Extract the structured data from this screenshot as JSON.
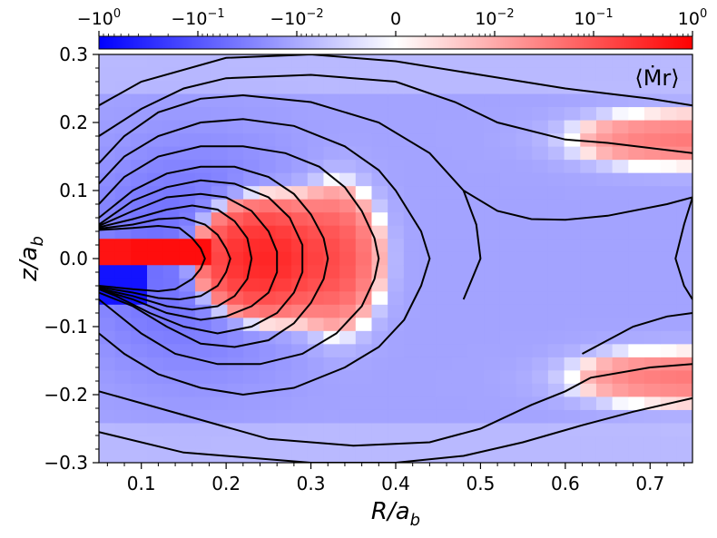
{
  "chart_data": {
    "type": "heatmap",
    "title": "",
    "annotation": "⟨Ṁr⟩",
    "xlabel": {
      "main": "R/a",
      "sub": "b"
    },
    "ylabel": {
      "main": "z/a",
      "sub": "b"
    },
    "xlim": [
      0.05,
      0.75
    ],
    "ylim": [
      -0.3,
      0.3
    ],
    "xticks": [
      0.1,
      0.2,
      0.3,
      0.4,
      0.5,
      0.6,
      0.7
    ],
    "xtick_labels": [
      "0.1",
      "0.2",
      "0.3",
      "0.4",
      "0.5",
      "0.6",
      "0.7"
    ],
    "yticks": [
      0.3,
      0.2,
      0.1,
      0.0,
      -0.1,
      -0.2,
      -0.3
    ],
    "ytick_labels": [
      "0.3",
      "0.2",
      "0.1",
      "0.0",
      "−0.1",
      "−0.2",
      "−0.3"
    ],
    "colorbar": {
      "scale": "symlog",
      "vmin": -1,
      "vmax": 1,
      "linthresh": 0.001,
      "colormap": [
        "#0000ff",
        "#ffffff",
        "#ff0000"
      ],
      "ticks": [
        {
          "value": -1,
          "base": "−10",
          "exp": "0"
        },
        {
          "value": -0.1,
          "base": "−10",
          "exp": "−1"
        },
        {
          "value": -0.01,
          "base": "−10",
          "exp": "−2"
        },
        {
          "value": 0,
          "base": "0",
          "exp": ""
        },
        {
          "value": 0.01,
          "base": "10",
          "exp": "−2"
        },
        {
          "value": 0.1,
          "base": "10",
          "exp": "−1"
        },
        {
          "value": 1,
          "base": "10",
          "exp": "0"
        }
      ]
    },
    "grid": false,
    "contour_color": "#000000",
    "contours": [
      {
        "x": [
          0.05,
          0.1,
          0.2,
          0.3,
          0.4,
          0.5,
          0.6,
          0.7,
          0.75
        ],
        "y": [
          0.225,
          0.26,
          0.295,
          0.3,
          0.29,
          0.27,
          0.25,
          0.235,
          0.225
        ]
      },
      {
        "x": [
          0.05,
          0.1,
          0.15,
          0.2,
          0.3,
          0.4,
          0.47,
          0.52,
          0.6,
          0.65,
          0.75
        ],
        "y": [
          0.18,
          0.22,
          0.25,
          0.265,
          0.27,
          0.26,
          0.23,
          0.2,
          0.175,
          0.17,
          0.155
        ]
      },
      {
        "x": [
          0.05,
          0.08,
          0.12,
          0.17,
          0.22,
          0.3,
          0.38,
          0.44,
          0.48,
          0.52,
          0.56,
          0.6,
          0.65,
          0.72,
          0.75
        ],
        "y": [
          0.14,
          0.18,
          0.215,
          0.235,
          0.24,
          0.23,
          0.2,
          0.155,
          0.1,
          0.07,
          0.058,
          0.057,
          0.063,
          0.08,
          0.09
        ]
      },
      {
        "x": [
          0.75,
          0.74,
          0.73,
          0.74,
          0.75
        ],
        "y": [
          0.09,
          0.05,
          0.0,
          -0.04,
          -0.06
        ]
      },
      {
        "x": [
          0.48,
          0.495,
          0.5,
          0.49,
          0.48
        ],
        "y": [
          0.1,
          0.05,
          0.0,
          -0.03,
          -0.06
        ]
      },
      {
        "x": [
          0.05,
          0.08,
          0.12,
          0.17,
          0.22,
          0.28,
          0.34,
          0.38,
          0.4,
          0.43,
          0.44,
          0.43,
          0.41,
          0.38,
          0.34,
          0.28,
          0.22,
          0.17,
          0.12,
          0.08,
          0.05
        ],
        "y": [
          0.11,
          0.15,
          0.18,
          0.2,
          0.205,
          0.195,
          0.165,
          0.13,
          0.1,
          0.04,
          0.0,
          -0.04,
          -0.09,
          -0.13,
          -0.16,
          -0.19,
          -0.2,
          -0.19,
          -0.17,
          -0.14,
          -0.11
        ]
      },
      {
        "x": [
          0.05,
          0.08,
          0.12,
          0.17,
          0.22,
          0.27,
          0.31,
          0.34,
          0.36,
          0.375,
          0.38,
          0.375,
          0.36,
          0.33,
          0.29,
          0.24,
          0.19,
          0.14,
          0.1,
          0.07,
          0.05
        ],
        "y": [
          0.08,
          0.12,
          0.15,
          0.165,
          0.165,
          0.155,
          0.135,
          0.105,
          0.07,
          0.03,
          0.0,
          -0.03,
          -0.07,
          -0.11,
          -0.14,
          -0.155,
          -0.155,
          -0.14,
          -0.11,
          -0.08,
          -0.06
        ]
      },
      {
        "x": [
          0.05,
          0.09,
          0.13,
          0.17,
          0.21,
          0.25,
          0.28,
          0.3,
          0.315,
          0.32,
          0.315,
          0.3,
          0.28,
          0.25,
          0.21,
          0.17,
          0.13,
          0.09,
          0.05
        ],
        "y": [
          0.06,
          0.1,
          0.125,
          0.135,
          0.135,
          0.12,
          0.095,
          0.065,
          0.03,
          0.0,
          -0.03,
          -0.065,
          -0.095,
          -0.12,
          -0.13,
          -0.125,
          -0.1,
          -0.07,
          -0.05
        ]
      },
      {
        "x": [
          0.05,
          0.09,
          0.13,
          0.17,
          0.21,
          0.25,
          0.275,
          0.29,
          0.29,
          0.28,
          0.26,
          0.23,
          0.19,
          0.15,
          0.11,
          0.07,
          0.05
        ],
        "y": [
          0.05,
          0.085,
          0.105,
          0.115,
          0.11,
          0.09,
          0.06,
          0.02,
          -0.02,
          -0.05,
          -0.08,
          -0.1,
          -0.11,
          -0.1,
          -0.08,
          -0.055,
          -0.045
        ]
      },
      {
        "x": [
          0.05,
          0.09,
          0.13,
          0.17,
          0.2,
          0.23,
          0.25,
          0.26,
          0.26,
          0.25,
          0.23,
          0.2,
          0.17,
          0.13,
          0.09,
          0.05
        ],
        "y": [
          0.048,
          0.07,
          0.09,
          0.095,
          0.09,
          0.07,
          0.04,
          0.01,
          -0.02,
          -0.05,
          -0.07,
          -0.085,
          -0.09,
          -0.08,
          -0.06,
          -0.045
        ]
      },
      {
        "x": [
          0.05,
          0.09,
          0.13,
          0.16,
          0.19,
          0.21,
          0.225,
          0.23,
          0.225,
          0.21,
          0.19,
          0.16,
          0.13,
          0.09,
          0.05
        ],
        "y": [
          0.046,
          0.058,
          0.072,
          0.078,
          0.072,
          0.055,
          0.03,
          0.0,
          -0.03,
          -0.055,
          -0.07,
          -0.075,
          -0.07,
          -0.055,
          -0.044
        ]
      },
      {
        "x": [
          0.05,
          0.09,
          0.12,
          0.15,
          0.175,
          0.19,
          0.2,
          0.205,
          0.2,
          0.19,
          0.17,
          0.145,
          0.12,
          0.09,
          0.05
        ],
        "y": [
          0.044,
          0.05,
          0.058,
          0.06,
          0.05,
          0.035,
          0.015,
          0.0,
          -0.02,
          -0.04,
          -0.055,
          -0.06,
          -0.058,
          -0.05,
          -0.042
        ]
      },
      {
        "x": [
          0.05,
          0.09,
          0.12,
          0.145,
          0.16,
          0.17,
          0.175,
          0.17,
          0.16,
          0.14,
          0.12,
          0.09,
          0.05
        ],
        "y": [
          0.042,
          0.045,
          0.048,
          0.045,
          0.03,
          0.015,
          0.0,
          -0.015,
          -0.03,
          -0.045,
          -0.048,
          -0.045,
          -0.04
        ]
      },
      {
        "x": [
          0.05,
          0.15,
          0.25,
          0.35,
          0.44,
          0.5,
          0.56,
          0.6,
          0.63,
          0.7,
          0.75
        ],
        "y": [
          -0.195,
          -0.23,
          -0.265,
          -0.275,
          -0.27,
          -0.25,
          -0.215,
          -0.195,
          -0.175,
          -0.16,
          -0.155
        ]
      },
      {
        "x": [
          0.05,
          0.15,
          0.3,
          0.4,
          0.48,
          0.55,
          0.62,
          0.68,
          0.75
        ],
        "y": [
          -0.255,
          -0.285,
          -0.3,
          -0.3,
          -0.29,
          -0.27,
          -0.245,
          -0.225,
          -0.205
        ]
      },
      {
        "x": [
          0.62,
          0.68,
          0.72,
          0.75
        ],
        "y": [
          -0.14,
          -0.1,
          -0.085,
          -0.08
        ]
      }
    ]
  }
}
